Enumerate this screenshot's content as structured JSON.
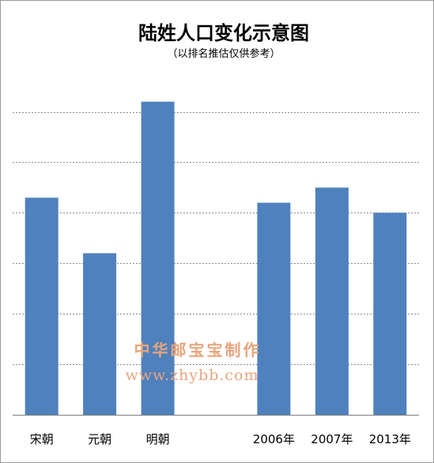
{
  "chart_data": {
    "type": "bar",
    "title": "陆姓人口变化示意图",
    "subtitle": "（以排名推估仅供参考）",
    "categories": [
      "宋朝",
      "元朝",
      "明朝",
      "",
      "2006年",
      "2007年",
      "2013年"
    ],
    "values": [
      4.3,
      3.2,
      6.2,
      null,
      4.2,
      4.5,
      4.0
    ],
    "ylim": [
      0,
      6.9
    ],
    "grid": true,
    "bar_color": "#4f81bd",
    "legend": "none"
  },
  "watermark": {
    "text": "中华邮宝宝制作",
    "url": "www.zhybb.com",
    "color": "#e8a47c"
  }
}
